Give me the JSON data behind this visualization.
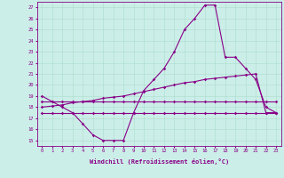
{
  "xlabel": "Windchill (Refroidissement éolien,°C)",
  "background_color": "#cceee8",
  "line_color": "#880088",
  "grid_color": "#aaddcc",
  "x_ticks": [
    0,
    1,
    2,
    3,
    4,
    5,
    6,
    7,
    8,
    9,
    10,
    11,
    12,
    13,
    14,
    15,
    16,
    17,
    18,
    19,
    20,
    21,
    22,
    23
  ],
  "ylim": [
    14.5,
    27.5
  ],
  "yticks": [
    15,
    16,
    17,
    18,
    19,
    20,
    21,
    22,
    23,
    24,
    25,
    26,
    27
  ],
  "series1_y": [
    19.0,
    18.5,
    18.0,
    17.5,
    16.5,
    15.5,
    15.0,
    15.0,
    15.0,
    17.5,
    19.5,
    20.5,
    21.5,
    23.0,
    25.0,
    26.0,
    27.2,
    27.2,
    22.5,
    22.5,
    21.5,
    20.5,
    18.0,
    17.5
  ],
  "series2_y": [
    18.5,
    18.5,
    18.5,
    18.5,
    18.5,
    18.5,
    18.5,
    18.5,
    18.5,
    18.5,
    18.5,
    18.5,
    18.5,
    18.5,
    18.5,
    18.5,
    18.5,
    18.5,
    18.5,
    18.5,
    18.5,
    18.5,
    18.5,
    18.5
  ],
  "series3_y": [
    18.0,
    18.1,
    18.2,
    18.4,
    18.5,
    18.6,
    18.8,
    18.9,
    19.0,
    19.2,
    19.4,
    19.6,
    19.8,
    20.0,
    20.2,
    20.3,
    20.5,
    20.6,
    20.7,
    20.8,
    20.9,
    21.0,
    17.5,
    17.5
  ],
  "series4_y": [
    17.5,
    17.5,
    17.5,
    17.5,
    17.5,
    17.5,
    17.5,
    17.5,
    17.5,
    17.5,
    17.5,
    17.5,
    17.5,
    17.5,
    17.5,
    17.5,
    17.5,
    17.5,
    17.5,
    17.5,
    17.5,
    17.5,
    17.5,
    17.5
  ]
}
